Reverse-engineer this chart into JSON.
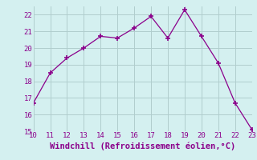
{
  "x": [
    10,
    11,
    12,
    13,
    14,
    15,
    16,
    17,
    18,
    19,
    20,
    21,
    22,
    23
  ],
  "y": [
    16.7,
    18.5,
    19.4,
    20.0,
    20.7,
    20.6,
    21.2,
    21.9,
    20.6,
    22.3,
    20.7,
    19.1,
    16.7,
    15.1
  ],
  "xlim": [
    10,
    23
  ],
  "ylim": [
    15,
    22.5
  ],
  "xticks": [
    10,
    11,
    12,
    13,
    14,
    15,
    16,
    17,
    18,
    19,
    20,
    21,
    22,
    23
  ],
  "yticks": [
    15,
    16,
    17,
    18,
    19,
    20,
    21,
    22
  ],
  "xlabel": "Windchill (Refroidissement éolien,°C)",
  "line_color": "#8b008b",
  "marker_color": "#8b008b",
  "bg_color": "#d4f0f0",
  "grid_color": "#b0cdcd",
  "tick_fontsize": 6.5,
  "label_fontsize": 7.5
}
